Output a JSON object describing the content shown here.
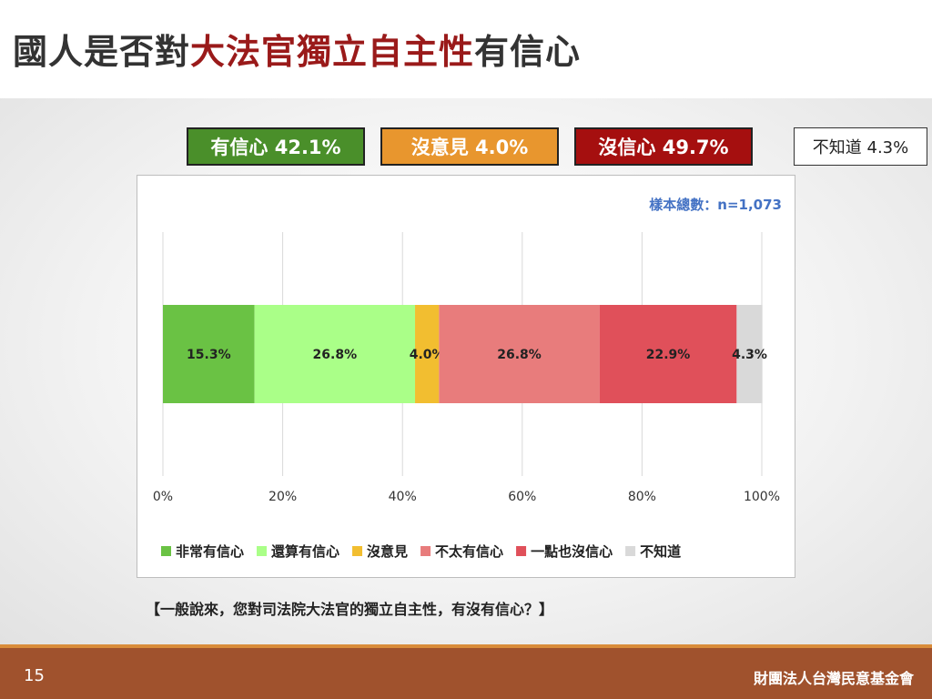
{
  "title": {
    "prefix": "國人是否對",
    "highlight": "大法官獨立自主性",
    "suffix": "有信心"
  },
  "summary": [
    {
      "label": "有信心 42.1%",
      "color": "#4a8f2a"
    },
    {
      "label": "沒意見 4.0%",
      "color": "#e8962e"
    },
    {
      "label": "沒信心 49.7%",
      "color": "#a50f0f"
    },
    {
      "label": "不知道 4.3%"
    }
  ],
  "sample_size": "樣本總數：n=1,073",
  "question": "【一般說來，您對司法院大法官的獨立自主性，有沒有信心？】",
  "footer": {
    "page_number": "15",
    "org": "財團法人台灣民意基金會"
  },
  "chart_data": {
    "type": "bar",
    "orientation": "horizontal-stacked-100",
    "xlim": [
      0,
      100
    ],
    "ticks": [
      "0%",
      "20%",
      "40%",
      "60%",
      "80%",
      "100%"
    ],
    "tick_values": [
      0,
      20,
      40,
      60,
      80,
      100
    ],
    "grid": true,
    "legend_position": "bottom",
    "series": [
      {
        "name": "非常有信心",
        "value": 15.3,
        "label": "15.3%",
        "color": "#6ac244"
      },
      {
        "name": "還算有信心",
        "value": 26.8,
        "label": "26.8%",
        "color": "#aaff88"
      },
      {
        "name": "沒意見",
        "value": 4.0,
        "label": "4.0%",
        "color": "#f2be30"
      },
      {
        "name": "不太有信心",
        "value": 26.8,
        "label": "26.8%",
        "color": "#e87c7c"
      },
      {
        "name": "一點也沒信心",
        "value": 22.9,
        "label": "22.9%",
        "color": "#e0505a"
      },
      {
        "name": "不知道",
        "value": 4.3,
        "label": "4.3%",
        "color": "#d9d9d9"
      }
    ]
  }
}
